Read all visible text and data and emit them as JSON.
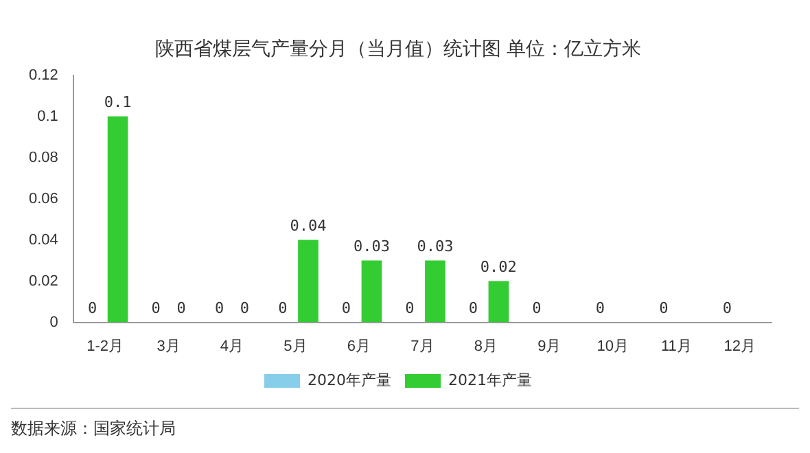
{
  "chart_data": {
    "type": "bar",
    "title": "陕西省煤层气产量分月（当月值）统计图 单位：亿立方米",
    "categories": [
      "1-2月",
      "3月",
      "4月",
      "5月",
      "6月",
      "7月",
      "8月",
      "9月",
      "10月",
      "11月",
      "12月"
    ],
    "series": [
      {
        "name": "2020年产量",
        "color": "#87ceeb",
        "values": [
          0,
          0,
          0,
          0,
          0,
          0,
          0,
          0,
          0,
          0,
          0
        ]
      },
      {
        "name": "2021年产量",
        "color": "#33cc33",
        "values": [
          0.1,
          0,
          0,
          0.04,
          0.03,
          0.03,
          0.02,
          null,
          null,
          null,
          null
        ]
      }
    ],
    "ylim": [
      0,
      0.12
    ],
    "yticks": [
      0,
      0.02,
      0.04,
      0.06,
      0.08,
      0.1,
      0.12
    ],
    "grid": false,
    "legend": "bottom",
    "data_labels": true,
    "annotations": [
      "数据来源：国家统计局"
    ]
  }
}
